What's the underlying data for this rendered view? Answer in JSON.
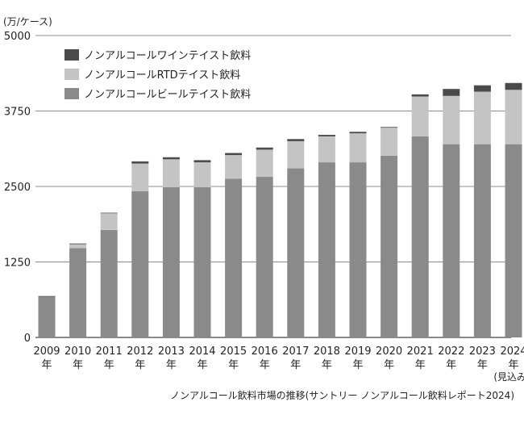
{
  "chart_data": {
    "type": "bar",
    "stacked": true,
    "unit_label": "(万/ケース)",
    "categories": [
      "2009",
      "2010",
      "2011",
      "2012",
      "2013",
      "2014",
      "2015",
      "2016",
      "2017",
      "2018",
      "2019",
      "2020",
      "2021",
      "2022",
      "2023",
      "2024"
    ],
    "category_suffix": "年",
    "category_note": {
      "2024": "(見込み)"
    },
    "y_ticks": [
      0,
      1250,
      2500,
      3750,
      5000
    ],
    "y_ticks_labels": [
      "0",
      "1250",
      "2500",
      "3750",
      "5000"
    ],
    "ylim": [
      0,
      5000
    ],
    "legend_position": "top-left",
    "series": [
      {
        "name": "ノンアルコールビールテイスト飲料",
        "color": "#8a8a8a",
        "values": [
          680,
          1480,
          1780,
          2420,
          2490,
          2490,
          2630,
          2660,
          2800,
          2900,
          2900,
          3010,
          3330,
          3200,
          3200,
          3200
        ]
      },
      {
        "name": "ノンアルコールRTDテイスト飲料",
        "color": "#c4c4c4",
        "values": [
          0,
          70,
          280,
          460,
          460,
          410,
          390,
          450,
          450,
          430,
          480,
          470,
          660,
          800,
          870,
          900
        ]
      },
      {
        "name": "ノンアルコールワインテイスト飲料",
        "color": "#4a4a4a",
        "values": [
          0,
          0,
          0,
          30,
          30,
          30,
          30,
          30,
          30,
          20,
          20,
          0,
          30,
          110,
          100,
          110
        ]
      }
    ],
    "legend_order": [
      "ノンアルコールワインテイスト飲料",
      "ノンアルコールRTDテイスト飲料",
      "ノンアルコールビールテイスト飲料"
    ],
    "caption": "ノンアルコール飲料市場の推移(サントリー ノンアルコール飲料レポート2024)"
  }
}
